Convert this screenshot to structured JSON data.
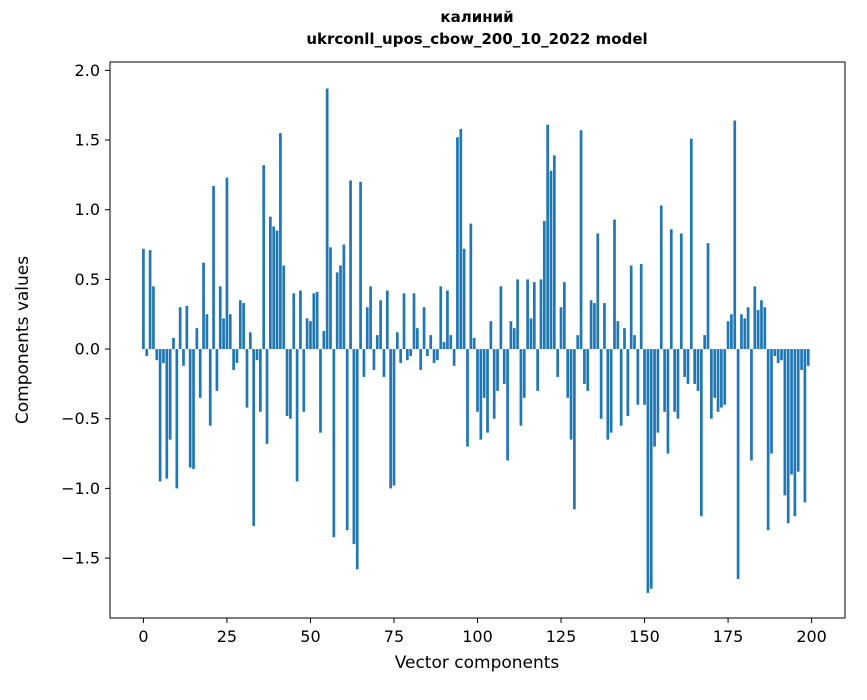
{
  "chart_data": {
    "type": "bar",
    "title_line1": "калиний",
    "title_line2": "ukrconll_upos_cbow_200_10_2022 model",
    "xlabel": "Vector components",
    "ylabel": "Components values",
    "bar_color": "#1f77b4",
    "axis_color": "#000000",
    "background_color": "#ffffff",
    "xlim": [
      -10,
      210
    ],
    "ylim": [
      -1.93,
      2.06
    ],
    "x_ticks": [
      0,
      25,
      50,
      75,
      100,
      125,
      150,
      175,
      200
    ],
    "y_ticks": [
      -1.5,
      -1.0,
      -0.5,
      0.0,
      0.5,
      1.0,
      1.5,
      2.0
    ],
    "legend": "none",
    "grid": false,
    "x_start": 0,
    "x_step": 1,
    "values": [
      0.72,
      -0.05,
      0.71,
      0.45,
      -0.08,
      -0.95,
      -0.1,
      -0.93,
      -0.65,
      0.08,
      -1.0,
      0.3,
      -0.12,
      0.31,
      -0.85,
      -0.86,
      0.15,
      -0.35,
      0.62,
      0.25,
      -0.55,
      1.17,
      -0.3,
      0.45,
      0.22,
      1.23,
      0.25,
      -0.15,
      -0.1,
      0.35,
      0.33,
      -0.42,
      0.12,
      -1.27,
      -0.08,
      -0.45,
      1.32,
      -0.68,
      0.95,
      0.88,
      0.85,
      1.55,
      0.6,
      -0.48,
      -0.5,
      0.4,
      -0.95,
      0.42,
      -0.45,
      0.22,
      0.2,
      0.4,
      0.41,
      -0.6,
      0.13,
      1.87,
      0.73,
      -1.35,
      0.55,
      0.6,
      0.75,
      -1.3,
      1.21,
      -1.4,
      -1.58,
      1.2,
      -0.2,
      0.3,
      0.45,
      -0.15,
      0.1,
      0.35,
      -0.2,
      0.42,
      -1.0,
      -0.98,
      0.12,
      -0.1,
      0.4,
      -0.08,
      -0.05,
      0.4,
      0.15,
      -0.15,
      0.3,
      -0.05,
      0.1,
      -0.1,
      -0.08,
      0.45,
      0.05,
      0.42,
      0.1,
      -0.12,
      1.52,
      1.58,
      0.72,
      -0.7,
      0.9,
      0.08,
      -0.45,
      -0.65,
      -0.35,
      -0.6,
      0.2,
      -0.5,
      -0.3,
      0.45,
      -0.25,
      -0.8,
      0.2,
      0.15,
      0.5,
      -0.55,
      -0.35,
      0.5,
      0.22,
      0.48,
      -0.3,
      0.5,
      0.92,
      1.61,
      1.28,
      1.39,
      -0.2,
      0.3,
      0.48,
      -0.35,
      -0.65,
      -1.15,
      0.1,
      1.57,
      -0.25,
      -0.3,
      0.35,
      0.33,
      0.83,
      -0.5,
      0.33,
      -0.65,
      -0.6,
      0.93,
      0.2,
      -0.55,
      0.15,
      -0.48,
      0.6,
      0.1,
      -0.4,
      0.61,
      -0.4,
      -1.75,
      -1.72,
      -0.7,
      -0.6,
      1.03,
      -0.45,
      -0.75,
      0.86,
      -0.45,
      -0.5,
      0.83,
      -0.2,
      -0.25,
      1.51,
      -0.25,
      -0.3,
      -1.2,
      0.1,
      0.76,
      -0.5,
      -0.35,
      -0.45,
      -0.42,
      -0.4,
      0.2,
      0.25,
      1.64,
      -1.65,
      0.25,
      0.22,
      0.3,
      -0.8,
      0.45,
      0.28,
      0.35,
      0.3,
      -1.3,
      -0.75,
      -0.05,
      -0.1,
      -0.08,
      -1.05,
      -1.25,
      -0.9,
      -1.2,
      -0.88,
      -0.15,
      -1.1,
      -0.12
    ]
  }
}
